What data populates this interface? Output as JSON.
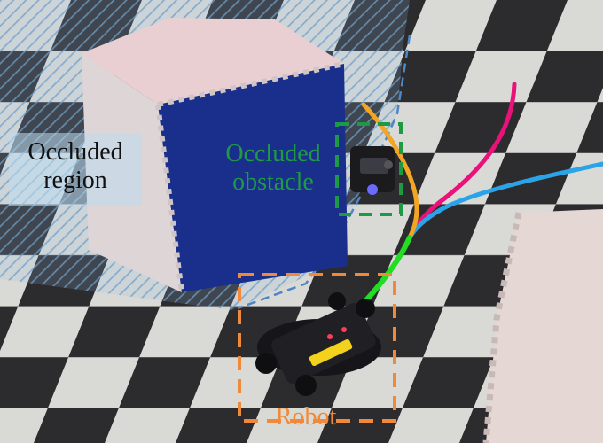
{
  "labels": {
    "occluded_region": "Occluded\nregion",
    "occluded_obstacle": "Occluded\nobstacle",
    "robot": "Robot"
  },
  "colors": {
    "occluded_region_text": "#111111",
    "occluded_obstacle_text": "#1e9a44",
    "robot_text": "#f08a3a",
    "occlusion_hatch": "#7fb0d6",
    "obstacle_box_face": "#1a2f8c",
    "obstacle_box_top": "#e9cfd2",
    "trajectory_magenta": "#e8127a",
    "trajectory_blue": "#2aa3e8",
    "trajectory_orange": "#f2a623",
    "trajectory_green": "#22dd22",
    "box_green_dashed": "#1e9a44",
    "box_orange_dashed": "#f08a3a"
  },
  "icons": [
    "robot-car",
    "occluded-robot-car"
  ]
}
